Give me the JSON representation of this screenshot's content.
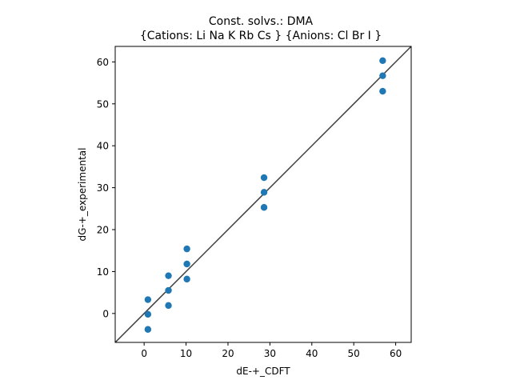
{
  "chart_data": {
    "type": "scatter",
    "title_lines": [
      "Const. solvs.: DMA",
      "{Cations: Li Na K Rb Cs } {Anions: Cl Br I }"
    ],
    "xlabel": "dE-+_CDFT",
    "ylabel": "dG-+_experimental",
    "xlim": [
      -6.9,
      63.7
    ],
    "ylim": [
      -6.9,
      63.7
    ],
    "x_ticks": [
      0,
      10,
      20,
      30,
      40,
      50,
      60
    ],
    "y_ticks": [
      0,
      10,
      20,
      30,
      40,
      50,
      60
    ],
    "grid": false,
    "legend": "none",
    "reference_line": {
      "label": "y = x",
      "color": "#3a3a3a"
    },
    "series": [
      {
        "color": "#1f77b4",
        "points": [
          {
            "x": 0.9,
            "y": 3.3
          },
          {
            "x": 0.9,
            "y": -0.2
          },
          {
            "x": 0.9,
            "y": -3.8
          },
          {
            "x": 5.8,
            "y": 9.0
          },
          {
            "x": 5.8,
            "y": 5.5
          },
          {
            "x": 5.8,
            "y": 1.9
          },
          {
            "x": 10.2,
            "y": 15.4
          },
          {
            "x": 10.2,
            "y": 11.8
          },
          {
            "x": 10.2,
            "y": 8.2
          },
          {
            "x": 28.6,
            "y": 32.4
          },
          {
            "x": 28.6,
            "y": 28.9
          },
          {
            "x": 28.6,
            "y": 25.3
          },
          {
            "x": 56.9,
            "y": 60.3
          },
          {
            "x": 56.9,
            "y": 56.7
          },
          {
            "x": 56.9,
            "y": 53.0
          }
        ]
      }
    ]
  }
}
